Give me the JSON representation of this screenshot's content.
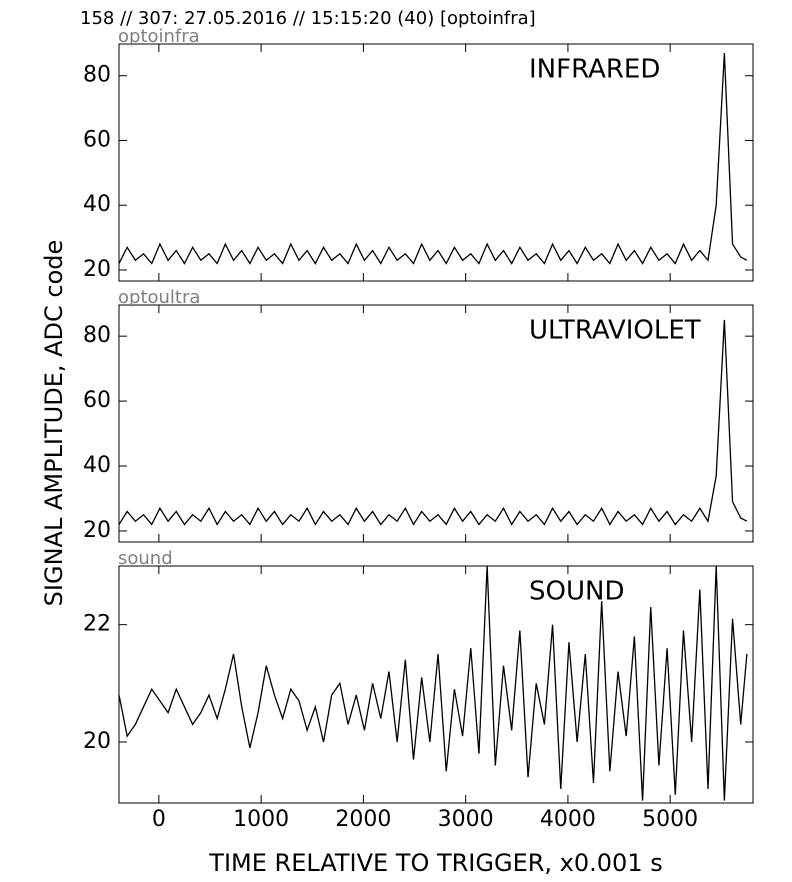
{
  "title": "158 // 307:   27.05.2016 // 15:15:20 (40)  [optoinfra]",
  "ylabel": "SIGNAL AMPLITUDE,  ADC code",
  "xlabel": "TIME RELATIVE TO TRIGGER,   x0.001 s",
  "chart_data": [
    {
      "type": "line",
      "panel_label": "optoinfra",
      "annotation": "INFRARED",
      "color": "#000000",
      "x": [
        -390,
        -310,
        -230,
        -150,
        -70,
        10,
        90,
        170,
        250,
        330,
        410,
        490,
        570,
        650,
        730,
        810,
        890,
        970,
        1050,
        1130,
        1210,
        1290,
        1370,
        1450,
        1530,
        1610,
        1690,
        1770,
        1850,
        1930,
        2010,
        2090,
        2170,
        2250,
        2330,
        2410,
        2490,
        2570,
        2650,
        2730,
        2810,
        2890,
        2970,
        3050,
        3130,
        3210,
        3290,
        3370,
        3450,
        3530,
        3610,
        3690,
        3770,
        3850,
        3930,
        4010,
        4090,
        4170,
        4250,
        4330,
        4410,
        4490,
        4570,
        4650,
        4730,
        4810,
        4890,
        4970,
        5050,
        5130,
        5210,
        5290,
        5370,
        5450,
        5530,
        5610,
        5690,
        5750
      ],
      "values": [
        22,
        27,
        23,
        25,
        22,
        28,
        23,
        26,
        22,
        27,
        23,
        25,
        22,
        28,
        23,
        26,
        22,
        27,
        23,
        25,
        22,
        28,
        23,
        26,
        22,
        27,
        23,
        25,
        22,
        28,
        23,
        26,
        22,
        27,
        23,
        25,
        22,
        28,
        23,
        26,
        22,
        27,
        23,
        25,
        22,
        28,
        23,
        26,
        22,
        27,
        23,
        25,
        22,
        28,
        23,
        26,
        22,
        27,
        23,
        25,
        22,
        28,
        23,
        26,
        22,
        27,
        23,
        25,
        22,
        28,
        23,
        26,
        23,
        40,
        87,
        28,
        24,
        23
      ],
      "xlim": [
        -390,
        5810
      ],
      "xticks": [
        0,
        1000,
        2000,
        3000,
        4000,
        5000
      ],
      "ylim": [
        16.6,
        89.8
      ],
      "yticks": [
        20,
        40,
        60,
        80
      ]
    },
    {
      "type": "line",
      "panel_label": "optoultra",
      "annotation": "ULTRAVIOLET",
      "color": "#000000",
      "x": [
        -390,
        -310,
        -230,
        -150,
        -70,
        10,
        90,
        170,
        250,
        330,
        410,
        490,
        570,
        650,
        730,
        810,
        890,
        970,
        1050,
        1130,
        1210,
        1290,
        1370,
        1450,
        1530,
        1610,
        1690,
        1770,
        1850,
        1930,
        2010,
        2090,
        2170,
        2250,
        2330,
        2410,
        2490,
        2570,
        2650,
        2730,
        2810,
        2890,
        2970,
        3050,
        3130,
        3210,
        3290,
        3370,
        3450,
        3530,
        3610,
        3690,
        3770,
        3850,
        3930,
        4010,
        4090,
        4170,
        4250,
        4330,
        4410,
        4490,
        4570,
        4650,
        4730,
        4810,
        4890,
        4970,
        5050,
        5130,
        5210,
        5290,
        5370,
        5450,
        5530,
        5610,
        5690,
        5750
      ],
      "values": [
        22,
        26,
        23,
        25,
        22,
        27,
        23,
        26,
        22,
        25,
        23,
        27,
        22,
        26,
        23,
        25,
        22,
        27,
        23,
        26,
        22,
        25,
        23,
        27,
        22,
        26,
        23,
        25,
        22,
        27,
        23,
        26,
        22,
        25,
        23,
        27,
        22,
        26,
        23,
        25,
        22,
        27,
        23,
        26,
        22,
        25,
        23,
        27,
        22,
        26,
        23,
        25,
        22,
        27,
        23,
        26,
        22,
        25,
        23,
        27,
        22,
        26,
        23,
        25,
        22,
        27,
        23,
        26,
        22,
        25,
        23,
        27,
        23,
        37,
        85,
        29,
        24,
        23
      ],
      "xlim": [
        -390,
        5810
      ],
      "xticks": [
        0,
        1000,
        2000,
        3000,
        4000,
        5000
      ],
      "ylim": [
        16.6,
        89.6
      ],
      "yticks": [
        20,
        40,
        60,
        80
      ]
    },
    {
      "type": "line",
      "panel_label": "sound",
      "annotation": "SOUND",
      "color": "#000000",
      "x": [
        -390,
        -310,
        -230,
        -150,
        -70,
        10,
        90,
        170,
        250,
        330,
        410,
        490,
        570,
        650,
        730,
        810,
        890,
        970,
        1050,
        1130,
        1210,
        1290,
        1370,
        1450,
        1530,
        1610,
        1690,
        1770,
        1850,
        1930,
        2010,
        2090,
        2170,
        2250,
        2330,
        2410,
        2490,
        2570,
        2650,
        2730,
        2810,
        2890,
        2970,
        3050,
        3130,
        3210,
        3290,
        3370,
        3450,
        3530,
        3610,
        3690,
        3770,
        3850,
        3930,
        4010,
        4090,
        4170,
        4250,
        4330,
        4410,
        4490,
        4570,
        4650,
        4730,
        4810,
        4890,
        4970,
        5050,
        5130,
        5210,
        5290,
        5370,
        5450,
        5530,
        5610,
        5690,
        5750
      ],
      "values": [
        20.8,
        20.1,
        20.3,
        20.6,
        20.9,
        20.7,
        20.5,
        20.9,
        20.6,
        20.3,
        20.5,
        20.8,
        20.4,
        20.9,
        21.5,
        20.6,
        19.9,
        20.5,
        21.3,
        20.8,
        20.4,
        20.9,
        20.7,
        20.2,
        20.6,
        20.0,
        20.8,
        21.0,
        20.3,
        20.8,
        20.2,
        21.0,
        20.4,
        21.2,
        20.0,
        21.4,
        19.7,
        21.1,
        20.0,
        21.5,
        19.5,
        20.9,
        20.1,
        21.6,
        19.8,
        23.0,
        19.6,
        21.3,
        20.2,
        21.9,
        19.4,
        21.0,
        20.3,
        22.0,
        19.2,
        21.7,
        20.0,
        21.5,
        19.3,
        22.4,
        19.5,
        21.2,
        20.1,
        21.8,
        19.0,
        22.3,
        19.6,
        21.6,
        19.1,
        21.9,
        20.0,
        22.6,
        19.2,
        23.0,
        19.0,
        22.1,
        20.3,
        21.5
      ],
      "xlim": [
        -390,
        5810
      ],
      "xticks": [
        0,
        1000,
        2000,
        3000,
        4000,
        5000
      ],
      "ylim": [
        18.96,
        23.0
      ],
      "yticks": [
        20,
        22
      ]
    }
  ]
}
